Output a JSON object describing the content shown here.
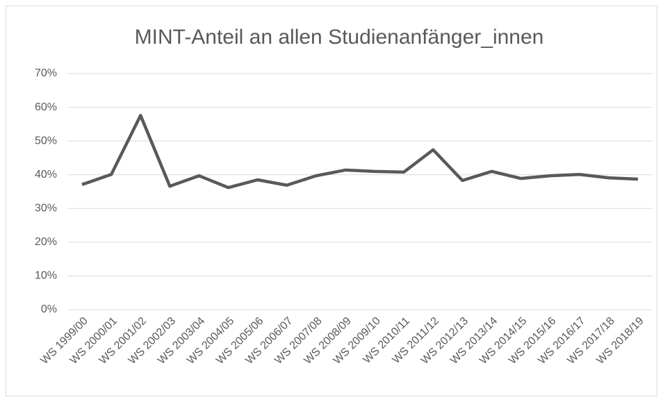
{
  "chart_data": {
    "type": "line",
    "title": "MINT-Anteil an allen Studienanfänger_innen",
    "categories": [
      "WS 1999/00",
      "WS 2000/01",
      "WS 2001/02",
      "WS 2002/03",
      "WS 2003/04",
      "WS 2004/05",
      "WS 2005/06",
      "WS 2006/07",
      "WS 2007/08",
      "WS 2008/09",
      "WS 2009/10",
      "WS 2010/11",
      "WS 2011/12",
      "WS 2012/13",
      "WS 2013/14",
      "WS 2014/15",
      "WS 2015/16",
      "WS 2016/17",
      "WS 2017/18",
      "WS 2018/19"
    ],
    "series": [
      {
        "color": "#595959",
        "values": [
          37.1,
          40.1,
          57.6,
          36.6,
          39.7,
          36.2,
          38.5,
          36.9,
          39.7,
          41.4,
          41.0,
          40.8,
          47.4,
          38.3,
          41.0,
          38.9,
          39.7,
          40.1,
          39.1,
          38.7
        ]
      }
    ],
    "ylim": [
      0,
      70
    ],
    "yticks": [
      {
        "value": 0,
        "label": "0%"
      },
      {
        "value": 10,
        "label": "10%"
      },
      {
        "value": 20,
        "label": "20%"
      },
      {
        "value": 30,
        "label": "30%"
      },
      {
        "value": 40,
        "label": "40%"
      },
      {
        "value": 50,
        "label": "50%"
      },
      {
        "value": 60,
        "label": "60%"
      },
      {
        "value": 70,
        "label": "70%"
      }
    ],
    "grid": true
  }
}
